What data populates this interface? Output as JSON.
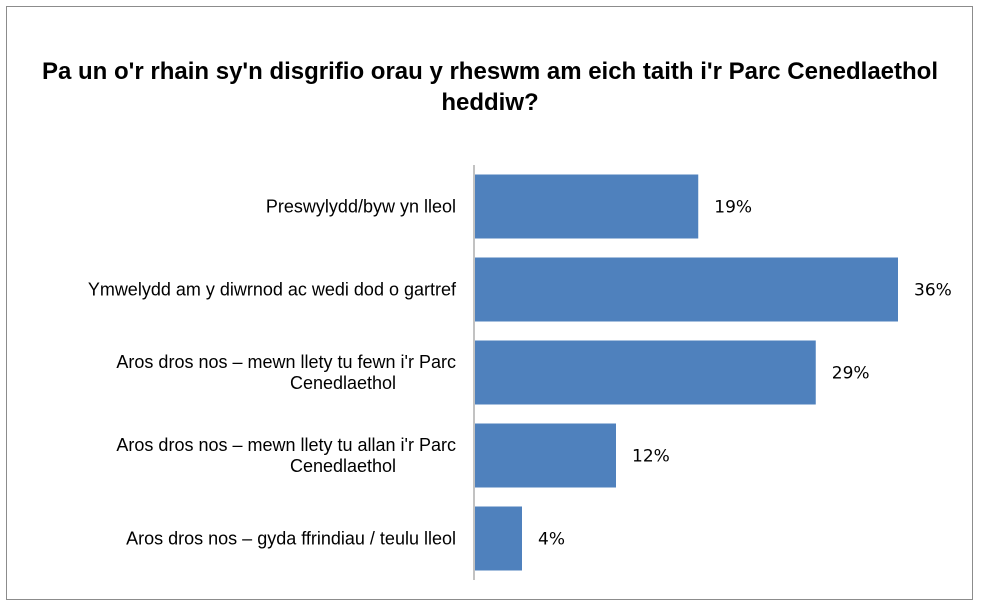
{
  "chart_data": {
    "type": "bar",
    "orientation": "horizontal",
    "title": "Pa un o'r rhain sy'n disgrifio orau y rheswm am eich taith i'r Parc Cenedlaethol heddiw?",
    "categories": [
      [
        "Preswylydd/byw yn lleol"
      ],
      [
        "Ymwelydd am y diwrnod ac wedi dod o gartref"
      ],
      [
        "Aros dros nos – mewn llety tu fewn i'r Parc",
        "Cenedlaethol"
      ],
      [
        "Aros dros nos – mewn llety tu allan i'r Parc",
        "Cenedlaethol"
      ],
      [
        "Aros dros nos – gyda ffrindiau / teulu lleol"
      ]
    ],
    "values": [
      19,
      36,
      29,
      12,
      4
    ],
    "value_labels": [
      "19%",
      "36%",
      "29%",
      "12%",
      "4%"
    ],
    "unit": "%",
    "xlim": [
      0,
      40
    ],
    "grid": false,
    "legend": "none",
    "bar_color": "#4f81bd",
    "axis_color": "#868686"
  }
}
